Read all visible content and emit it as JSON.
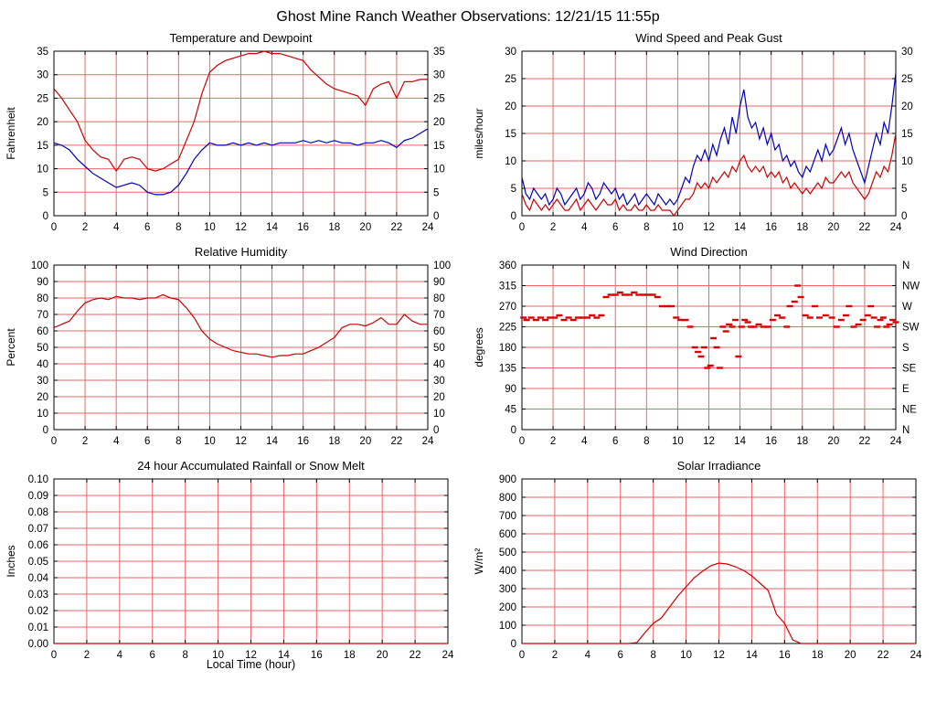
{
  "page": {
    "title": "Ghost Mine Ranch Weather Observations: 12/21/15 11:55p",
    "grid_color": "#ee6666",
    "axis_color": "#000000"
  },
  "chart_data": [
    {
      "type": "line",
      "title": "Temperature and Dewpoint",
      "ylabel": "Fahrenheit",
      "ylim": [
        0,
        35
      ],
      "ytick_step": 5,
      "xlim": [
        0,
        24
      ],
      "xtick_step": 2,
      "mirror_y": true,
      "grid": true,
      "series": [
        {
          "name": "Temperature",
          "color": "#cc0000",
          "x_start": 0,
          "x_step": 0.5,
          "values": [
            27,
            25,
            22.5,
            20,
            16,
            14,
            12.5,
            12,
            9.5,
            12,
            12.5,
            12,
            10,
            9.5,
            10,
            11,
            12,
            16,
            20,
            26,
            30.5,
            32,
            33,
            33.5,
            34,
            34.5,
            34.5,
            35,
            34.5,
            34.5,
            34,
            33.5,
            33,
            31,
            29.5,
            28,
            27,
            26.5,
            26,
            25.5,
            23.5,
            27,
            28,
            28.5,
            25,
            28.5,
            28.5,
            29,
            29
          ]
        },
        {
          "name": "Dewpoint",
          "color": "#0000bb",
          "x_start": 0,
          "x_step": 0.5,
          "values": [
            15.5,
            15,
            14,
            12,
            10.5,
            9,
            8,
            7,
            6,
            6.5,
            7,
            6.5,
            5,
            4.5,
            4.5,
            5,
            6.5,
            9,
            12,
            14,
            15.5,
            15,
            15,
            15.5,
            15,
            15.5,
            15,
            15.5,
            15,
            15.5,
            15.5,
            15.5,
            16,
            15.5,
            16,
            15.5,
            16,
            15.5,
            15.5,
            15,
            15.5,
            15.5,
            16,
            15.5,
            14.5,
            16,
            16.5,
            17.5,
            18.5
          ]
        }
      ]
    },
    {
      "type": "line",
      "title": "Wind Speed and Peak Gust",
      "ylabel": "miles/hour",
      "ylim": [
        0,
        30
      ],
      "ytick_step": 5,
      "xlim": [
        0,
        24
      ],
      "xtick_step": 2,
      "mirror_y": true,
      "grid": true,
      "series": [
        {
          "name": "Peak Gust",
          "color": "#0000bb",
          "x_start": 0,
          "x_step": 0.25,
          "values": [
            7,
            4,
            3,
            5,
            4,
            3,
            4,
            2,
            3,
            5,
            4,
            2,
            3,
            4,
            5,
            3,
            4,
            6,
            5,
            3,
            4,
            6,
            5,
            4,
            5,
            3,
            4,
            2,
            3,
            4,
            2,
            3,
            4,
            3,
            2,
            4,
            3,
            2,
            3,
            2,
            3,
            5,
            7,
            6,
            9,
            11,
            10,
            12,
            10,
            13,
            11,
            14,
            16,
            13,
            18,
            15,
            20,
            23,
            18,
            16,
            17,
            14,
            16,
            13,
            15,
            12,
            13,
            10,
            11,
            9,
            10,
            8,
            7,
            9,
            8,
            10,
            12,
            10,
            13,
            11,
            12,
            14,
            16,
            13,
            15,
            12,
            10,
            8,
            6,
            9,
            12,
            15,
            13,
            17,
            15,
            20,
            26
          ]
        },
        {
          "name": "Wind Speed",
          "color": "#cc0000",
          "x_start": 0,
          "x_step": 0.25,
          "values": [
            4,
            2,
            1,
            3,
            2,
            1,
            2,
            1,
            2,
            3,
            2,
            1,
            1,
            2,
            3,
            1,
            2,
            3,
            2,
            1,
            2,
            3,
            2,
            2,
            3,
            1,
            2,
            1,
            1,
            2,
            1,
            1,
            2,
            1,
            1,
            2,
            1,
            1,
            1,
            0,
            1,
            2,
            3,
            3,
            4,
            6,
            5,
            6,
            5,
            7,
            6,
            7,
            8,
            7,
            9,
            8,
            10,
            11,
            9,
            8,
            9,
            8,
            9,
            7,
            8,
            7,
            8,
            6,
            7,
            5,
            6,
            5,
            4,
            5,
            4,
            5,
            6,
            5,
            7,
            6,
            6,
            7,
            8,
            7,
            8,
            6,
            5,
            4,
            3,
            4,
            6,
            8,
            7,
            9,
            8,
            11,
            15
          ]
        }
      ]
    },
    {
      "type": "line",
      "title": "Relative Humidity",
      "ylabel": "Percent",
      "ylim": [
        0,
        100
      ],
      "ytick_step": 10,
      "xlim": [
        0,
        24
      ],
      "xtick_step": 2,
      "mirror_y": true,
      "grid": true,
      "series": [
        {
          "name": "Relative Humidity",
          "color": "#cc0000",
          "x_start": 0,
          "x_step": 0.5,
          "values": [
            62,
            64,
            66,
            72,
            77,
            79,
            80,
            79,
            81,
            80,
            80,
            79,
            80,
            80,
            82,
            80,
            79,
            74,
            68,
            60,
            55,
            52,
            50,
            48,
            47,
            46,
            46,
            45,
            44,
            45,
            45,
            46,
            46,
            48,
            50,
            53,
            56,
            62,
            64,
            64,
            63,
            65,
            68,
            64,
            64,
            70,
            66,
            64,
            64
          ]
        }
      ]
    },
    {
      "type": "scatter",
      "title": "Wind Direction",
      "ylabel": "degrees",
      "ylim": [
        0,
        360
      ],
      "ytick_step": 45,
      "xlim": [
        0,
        24
      ],
      "xtick_step": 2,
      "grid": true,
      "right_axis_labels": [
        "N",
        "NW",
        "W",
        "SW",
        "S",
        "SE",
        "E",
        "NE",
        "N"
      ],
      "point_color": "#dd0000",
      "points": [
        [
          0.1,
          245
        ],
        [
          0.3,
          240
        ],
        [
          0.6,
          245
        ],
        [
          0.9,
          240
        ],
        [
          1.2,
          245
        ],
        [
          1.5,
          240
        ],
        [
          1.8,
          245
        ],
        [
          2.1,
          245
        ],
        [
          2.4,
          250
        ],
        [
          2.7,
          240
        ],
        [
          3.0,
          245
        ],
        [
          3.3,
          240
        ],
        [
          3.6,
          245
        ],
        [
          3.9,
          245
        ],
        [
          4.2,
          245
        ],
        [
          4.5,
          250
        ],
        [
          4.8,
          245
        ],
        [
          5.1,
          250
        ],
        [
          5.4,
          290
        ],
        [
          5.7,
          295
        ],
        [
          6.0,
          295
        ],
        [
          6.3,
          300
        ],
        [
          6.6,
          295
        ],
        [
          6.9,
          295
        ],
        [
          7.2,
          300
        ],
        [
          7.5,
          295
        ],
        [
          7.8,
          295
        ],
        [
          8.1,
          295
        ],
        [
          8.4,
          295
        ],
        [
          8.7,
          290
        ],
        [
          9.0,
          270
        ],
        [
          9.3,
          270
        ],
        [
          9.6,
          270
        ],
        [
          9.9,
          245
        ],
        [
          10.2,
          240
        ],
        [
          10.5,
          240
        ],
        [
          10.8,
          225
        ],
        [
          11.1,
          180
        ],
        [
          11.3,
          170
        ],
        [
          11.5,
          160
        ],
        [
          11.7,
          180
        ],
        [
          11.9,
          135
        ],
        [
          12.1,
          140
        ],
        [
          12.3,
          200
        ],
        [
          12.5,
          180
        ],
        [
          12.7,
          135
        ],
        [
          12.9,
          225
        ],
        [
          13.1,
          215
        ],
        [
          13.3,
          230
        ],
        [
          13.5,
          225
        ],
        [
          13.7,
          240
        ],
        [
          13.9,
          160
        ],
        [
          14.1,
          225
        ],
        [
          14.3,
          240
        ],
        [
          14.5,
          235
        ],
        [
          14.7,
          225
        ],
        [
          14.9,
          225
        ],
        [
          15.2,
          230
        ],
        [
          15.5,
          225
        ],
        [
          15.8,
          225
        ],
        [
          16.1,
          240
        ],
        [
          16.4,
          250
        ],
        [
          16.7,
          245
        ],
        [
          17.0,
          225
        ],
        [
          17.2,
          270
        ],
        [
          17.5,
          280
        ],
        [
          17.7,
          315
        ],
        [
          17.9,
          290
        ],
        [
          18.2,
          250
        ],
        [
          18.5,
          245
        ],
        [
          18.8,
          270
        ],
        [
          19.1,
          245
        ],
        [
          19.5,
          250
        ],
        [
          19.9,
          245
        ],
        [
          20.2,
          225
        ],
        [
          20.5,
          240
        ],
        [
          20.8,
          250
        ],
        [
          21.0,
          270
        ],
        [
          21.3,
          225
        ],
        [
          21.6,
          230
        ],
        [
          21.9,
          240
        ],
        [
          22.2,
          250
        ],
        [
          22.4,
          270
        ],
        [
          22.6,
          245
        ],
        [
          22.8,
          225
        ],
        [
          23.0,
          240
        ],
        [
          23.2,
          245
        ],
        [
          23.4,
          225
        ],
        [
          23.6,
          230
        ],
        [
          23.8,
          240
        ],
        [
          24.0,
          235
        ]
      ]
    },
    {
      "type": "line",
      "title": "24 hour Accumulated Rainfall or Snow Melt",
      "ylabel": "Inches",
      "xlabel": "Local Time (hour)",
      "ylim": [
        0,
        0.1
      ],
      "ytick_step": 0.01,
      "ytick_decimals": 2,
      "xlim": [
        0,
        24
      ],
      "xtick_step": 2,
      "mirror_y": false,
      "grid": true,
      "series": [
        {
          "name": "Rainfall",
          "color": "#cc0000",
          "x_start": 0,
          "x_step": 24,
          "values": [
            0,
            0
          ]
        }
      ]
    },
    {
      "type": "line",
      "title": "Solar Irradiance",
      "ylabel": "W/m²",
      "ylim": [
        0,
        900
      ],
      "ytick_step": 100,
      "xlim": [
        0,
        24
      ],
      "xtick_step": 2,
      "mirror_y": false,
      "grid": true,
      "series": [
        {
          "name": "Solar Irradiance",
          "color": "#cc0000",
          "x_start": 0,
          "x_step": 0.5,
          "values": [
            0,
            0,
            0,
            0,
            0,
            0,
            0,
            0,
            0,
            0,
            0,
            0,
            0,
            0,
            5,
            60,
            110,
            140,
            200,
            260,
            310,
            360,
            395,
            425,
            440,
            435,
            420,
            400,
            370,
            330,
            290,
            160,
            110,
            20,
            0,
            0,
            0,
            0,
            0,
            0,
            0,
            0,
            0,
            0,
            0,
            0,
            0,
            0,
            0
          ]
        }
      ]
    }
  ]
}
